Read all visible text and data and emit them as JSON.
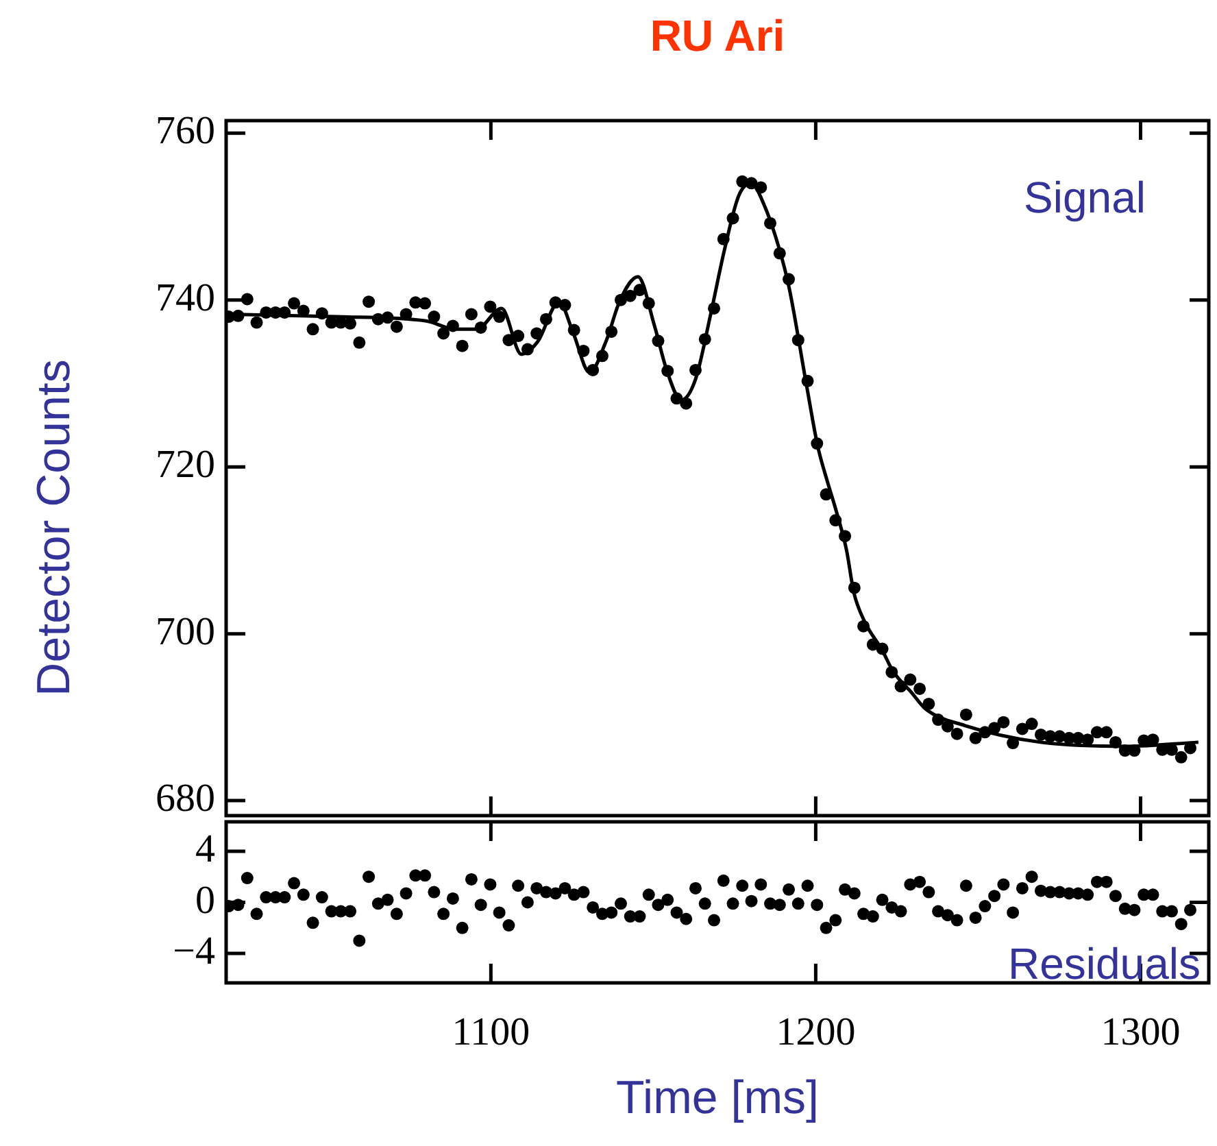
{
  "chart_data": [
    {
      "type": "scatter",
      "title": "RU Ari",
      "ylabel": "Detector Counts",
      "annotations": [
        "Signal"
      ],
      "marker": "circle",
      "tick_labels": "y",
      "xlim": [
        1018.5,
        1321
      ],
      "xticks": [
        1100,
        1200,
        1300
      ],
      "ylim": [
        678.2,
        761.5
      ],
      "yticks": [
        680,
        700,
        720,
        740,
        760
      ],
      "series": [
        {
          "type": "scatter",
          "color": "#000000",
          "x": [
            1019.3,
            1022.2,
            1025.0,
            1027.9,
            1030.8,
            1033.7,
            1036.5,
            1039.4,
            1042.3,
            1045.2,
            1048.0,
            1050.9,
            1053.8,
            1056.7,
            1059.5,
            1062.4,
            1065.3,
            1068.2,
            1071.0,
            1073.9,
            1076.8,
            1079.7,
            1082.5,
            1085.4,
            1088.3,
            1091.2,
            1094.0,
            1096.9,
            1099.8,
            1102.6,
            1105.5,
            1108.4,
            1111.3,
            1114.1,
            1117.0,
            1119.9,
            1122.8,
            1125.6,
            1128.5,
            1131.4,
            1134.3,
            1137.1,
            1140.0,
            1142.9,
            1145.8,
            1148.6,
            1151.5,
            1154.4,
            1157.2,
            1160.1,
            1163.0,
            1165.9,
            1168.7,
            1171.6,
            1174.5,
            1177.4,
            1180.2,
            1183.1,
            1186.0,
            1188.9,
            1191.7,
            1194.6,
            1197.5,
            1200.4,
            1203.2,
            1206.1,
            1209.0,
            1211.9,
            1214.7,
            1217.6,
            1220.5,
            1223.4,
            1226.2,
            1229.1,
            1232.0,
            1234.8,
            1237.7,
            1240.6,
            1243.5,
            1246.3,
            1249.2,
            1252.1,
            1255.0,
            1257.8,
            1260.7,
            1263.6,
            1266.5,
            1269.3,
            1272.2,
            1275.1,
            1278.0,
            1280.8,
            1283.7,
            1286.6,
            1289.5,
            1292.3,
            1295.2,
            1298.1,
            1301.0,
            1303.8,
            1306.7,
            1309.6,
            1312.5,
            1315.3
          ],
          "values": [
            738.0,
            738.1,
            740.1,
            737.3,
            738.5,
            738.5,
            738.5,
            739.6,
            738.7,
            736.5,
            738.4,
            737.3,
            737.3,
            737.2,
            734.9,
            739.8,
            737.7,
            737.9,
            736.8,
            738.3,
            739.7,
            739.6,
            738.0,
            736.0,
            736.9,
            734.5,
            738.3,
            736.7,
            739.2,
            738.0,
            735.2,
            735.7,
            734.1,
            736.0,
            737.7,
            739.7,
            739.4,
            736.4,
            733.9,
            731.6,
            733.3,
            736.2,
            740.0,
            740.5,
            741.2,
            739.6,
            735.1,
            731.5,
            728.2,
            727.6,
            731.6,
            735.3,
            739.0,
            747.3,
            749.8,
            754.2,
            754.0,
            753.5,
            749.2,
            745.6,
            742.5,
            735.2,
            730.3,
            722.8,
            716.7,
            713.6,
            711.7,
            705.5,
            700.9,
            698.7,
            698.2,
            695.4,
            693.7,
            694.5,
            693.4,
            691.6,
            689.7,
            688.9,
            688.0,
            690.3,
            687.5,
            688.2,
            688.7,
            689.4,
            686.9,
            688.6,
            689.2,
            687.9,
            687.7,
            687.7,
            687.5,
            687.5,
            687.3,
            688.2,
            688.2,
            687.0,
            686.0,
            686.0,
            687.2,
            687.3,
            686.1,
            686.1,
            685.2,
            686.3
          ]
        },
        {
          "type": "line",
          "color": "#000000",
          "marker": "none",
          "line_style": "solid",
          "x": [
            1019.3,
            1052.5,
            1080.1,
            1089.0,
            1095.6,
            1103.3,
            1109.4,
            1114.4,
            1121.0,
            1125.4,
            1130.4,
            1135.4,
            1139.8,
            1145.3,
            1150.3,
            1154.2,
            1158.6,
            1163.0,
            1167.5,
            1171.9,
            1176.3,
            1180.2,
            1184.0,
            1188.5,
            1191.8,
            1197.3,
            1200.6,
            1203.4,
            1206.1,
            1209.5,
            1211.7,
            1215.0,
            1220.5,
            1223.8,
            1229.4,
            1233.8,
            1245.9,
            1269.2,
            1295.7,
            1317.8
          ],
          "values": [
            738.3,
            738,
            737.5,
            736.5,
            736.5,
            739,
            733.5,
            735,
            739.8,
            736,
            731.3,
            735,
            740,
            742.8,
            737,
            731.5,
            728,
            730.5,
            738,
            746,
            752.5,
            754,
            751.5,
            746.5,
            741.5,
            729.5,
            722.5,
            718.5,
            715,
            710,
            705,
            701.5,
            698,
            695.5,
            693,
            691,
            689,
            687,
            686.5,
            687
          ]
        }
      ]
    },
    {
      "type": "scatter",
      "xlabel": "Time [ms]",
      "annotations": [
        "Residuals"
      ],
      "marker": "circle",
      "color": "#000000",
      "xlim": [
        1018.5,
        1321
      ],
      "xticks": [
        1100,
        1200,
        1300
      ],
      "ylim": [
        -6.3,
        6.3
      ],
      "yticks": [
        4,
        0,
        {
          "value": -4,
          "label": "−4"
        }
      ],
      "x": [
        1019.3,
        1022.2,
        1025.0,
        1027.9,
        1030.8,
        1033.7,
        1036.5,
        1039.4,
        1042.3,
        1045.2,
        1048.0,
        1050.9,
        1053.8,
        1056.7,
        1059.5,
        1062.4,
        1065.3,
        1068.2,
        1071.0,
        1073.9,
        1076.8,
        1079.7,
        1082.5,
        1085.4,
        1088.3,
        1091.2,
        1094.0,
        1096.9,
        1099.8,
        1102.6,
        1105.5,
        1108.4,
        1111.3,
        1114.1,
        1117.0,
        1119.9,
        1122.8,
        1125.6,
        1128.5,
        1131.4,
        1134.3,
        1137.1,
        1140.0,
        1142.9,
        1145.8,
        1148.6,
        1151.5,
        1154.4,
        1157.2,
        1160.1,
        1163.0,
        1165.9,
        1168.7,
        1171.6,
        1174.5,
        1177.4,
        1180.2,
        1183.1,
        1186.0,
        1188.9,
        1191.7,
        1194.6,
        1197.5,
        1200.4,
        1203.2,
        1206.1,
        1209.0,
        1211.9,
        1214.7,
        1217.6,
        1220.5,
        1223.4,
        1226.2,
        1229.1,
        1232.0,
        1234.8,
        1237.7,
        1240.6,
        1243.5,
        1246.3,
        1249.2,
        1252.1,
        1255.0,
        1257.8,
        1260.7,
        1263.6,
        1266.5,
        1269.3,
        1272.2,
        1275.1,
        1278.0,
        1280.8,
        1283.7,
        1286.6,
        1289.5,
        1292.3,
        1295.2,
        1298.1,
        1301.0,
        1303.8,
        1306.7,
        1309.6,
        1312.5,
        1315.3
      ],
      "values": [
        -0.3,
        -0.2,
        1.9,
        -0.9,
        0.4,
        0.4,
        0.4,
        1.5,
        0.6,
        -1.6,
        0.4,
        -0.7,
        -0.7,
        -0.7,
        -3.0,
        2.0,
        -0.1,
        0.2,
        -0.9,
        0.7,
        2.1,
        2.1,
        0.8,
        -0.9,
        0.3,
        -2.0,
        1.8,
        -0.2,
        1.4,
        -0.8,
        -1.8,
        1.3,
        0.0,
        1.1,
        0.8,
        0.7,
        1.1,
        0.6,
        0.8,
        -0.4,
        -0.9,
        -0.8,
        -0.1,
        -1.1,
        -1.1,
        0.6,
        -0.2,
        0.2,
        -0.8,
        -1.3,
        1.1,
        -0.1,
        -1.4,
        1.7,
        -0.1,
        1.3,
        0.1,
        1.4,
        -0.1,
        -0.2,
        1.0,
        -0.1,
        1.3,
        -0.2,
        -2.0,
        -1.4,
        1.0,
        0.7,
        -0.9,
        -1.1,
        0.2,
        -0.4,
        -0.7,
        1.4,
        1.6,
        0.8,
        -0.7,
        -1.0,
        -1.4,
        1.3,
        -1.2,
        -0.3,
        0.5,
        1.4,
        -0.8,
        1.1,
        2.0,
        0.9,
        0.8,
        0.8,
        0.7,
        0.7,
        0.6,
        1.6,
        1.6,
        0.5,
        -0.5,
        -0.6,
        0.6,
        0.6,
        -0.7,
        -0.7,
        -1.7,
        -0.6
      ]
    }
  ]
}
